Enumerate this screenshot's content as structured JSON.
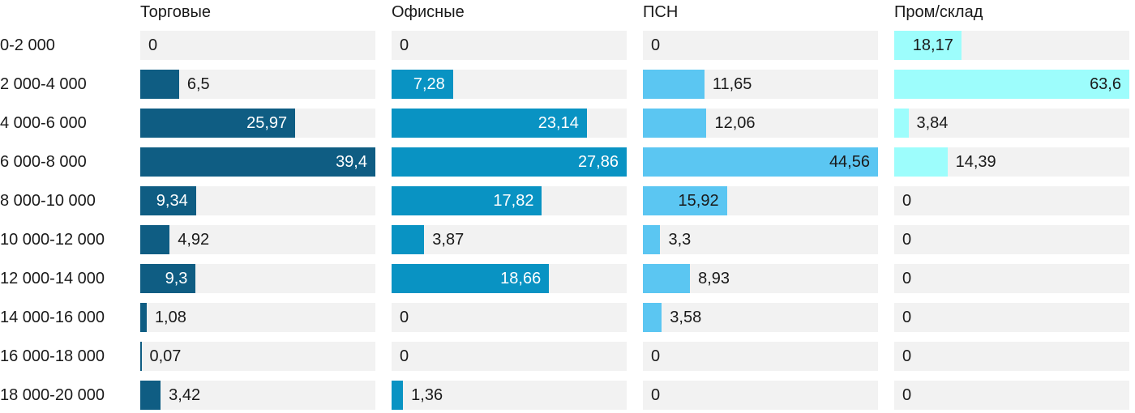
{
  "chart_data": {
    "type": "bar",
    "orientation": "horizontal",
    "layout": {
      "scale": "each column scaled independently from 0 to its own max value",
      "track_color": "#f2f2f2",
      "text_color": "#1a1a1a",
      "background": "#ffffff"
    },
    "categories": [
      "0-2 000",
      "2 000-4 000",
      "4 000-6 000",
      "6 000-8 000",
      "8 000-10 000",
      "10 000-12 000",
      "12 000-14 000",
      "14 000-16 000",
      "16 000-18 000",
      "18 000-20 000"
    ],
    "series": [
      {
        "name": "Торговые",
        "color": "#0f5d83",
        "inside_text_color": "#ffffff",
        "values": [
          0,
          6.5,
          25.97,
          39.4,
          9.34,
          4.92,
          9.3,
          1.08,
          0.07,
          3.42
        ],
        "labels": [
          "0",
          "6,5",
          "25,97",
          "39,4",
          "9,34",
          "4,92",
          "9,3",
          "1,08",
          "0,07",
          "3,42"
        ],
        "label_inside": [
          false,
          false,
          true,
          true,
          true,
          false,
          true,
          false,
          false,
          false
        ]
      },
      {
        "name": "Офисные",
        "color": "#0993c3",
        "inside_text_color": "#ffffff",
        "values": [
          0,
          7.28,
          23.14,
          27.86,
          17.82,
          3.87,
          18.66,
          0,
          0,
          1.36
        ],
        "labels": [
          "0",
          "7,28",
          "23,14",
          "27,86",
          "17,82",
          "3,87",
          "18,66",
          "0",
          "0",
          "1,36"
        ],
        "label_inside": [
          false,
          true,
          true,
          true,
          true,
          false,
          true,
          false,
          false,
          false
        ]
      },
      {
        "name": "ПСН",
        "color": "#5bc6f2",
        "inside_text_color": "#1a1a1a",
        "values": [
          0,
          11.65,
          12.06,
          44.56,
          15.92,
          3.3,
          8.93,
          3.58,
          0,
          0
        ],
        "labels": [
          "0",
          "11,65",
          "12,06",
          "44,56",
          "15,92",
          "3,3",
          "8,93",
          "3,58",
          "0",
          "0"
        ],
        "label_inside": [
          false,
          false,
          false,
          true,
          true,
          false,
          false,
          false,
          false,
          false
        ]
      },
      {
        "name": "Пром/склад",
        "color": "#9dfdfc",
        "inside_text_color": "#1a1a1a",
        "values": [
          18.17,
          63.6,
          3.84,
          14.39,
          0,
          0,
          0,
          0,
          0,
          0
        ],
        "labels": [
          "18,17",
          "63,6",
          "3,84",
          "14,39",
          "0",
          "0",
          "0",
          "0",
          "0",
          "0"
        ],
        "label_inside": [
          true,
          true,
          false,
          false,
          false,
          false,
          false,
          false,
          false,
          false
        ]
      }
    ]
  }
}
